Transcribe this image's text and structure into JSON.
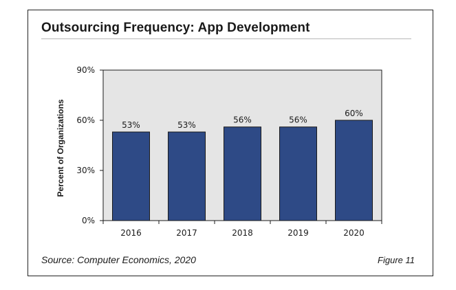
{
  "title": "Outsourcing Frequency: App Development",
  "source": "Source: Computer Economics, 2020",
  "figure_label": "Figure 11",
  "chart_data": {
    "type": "bar",
    "categories": [
      "2016",
      "2017",
      "2018",
      "2019",
      "2020"
    ],
    "values": [
      53,
      53,
      56,
      56,
      60
    ],
    "value_labels": [
      "53%",
      "53%",
      "56%",
      "56%",
      "60%"
    ],
    "ylabel": "Percent of Organizations",
    "xlabel": "",
    "ylim": [
      0,
      90
    ],
    "yticks": [
      0,
      30,
      60,
      90
    ],
    "ytick_labels": [
      "0%",
      "30%",
      "60%",
      "90%"
    ],
    "grid": false,
    "colors": {
      "bar": "#2e4a86",
      "plot_bg": "#e5e5e5"
    }
  }
}
